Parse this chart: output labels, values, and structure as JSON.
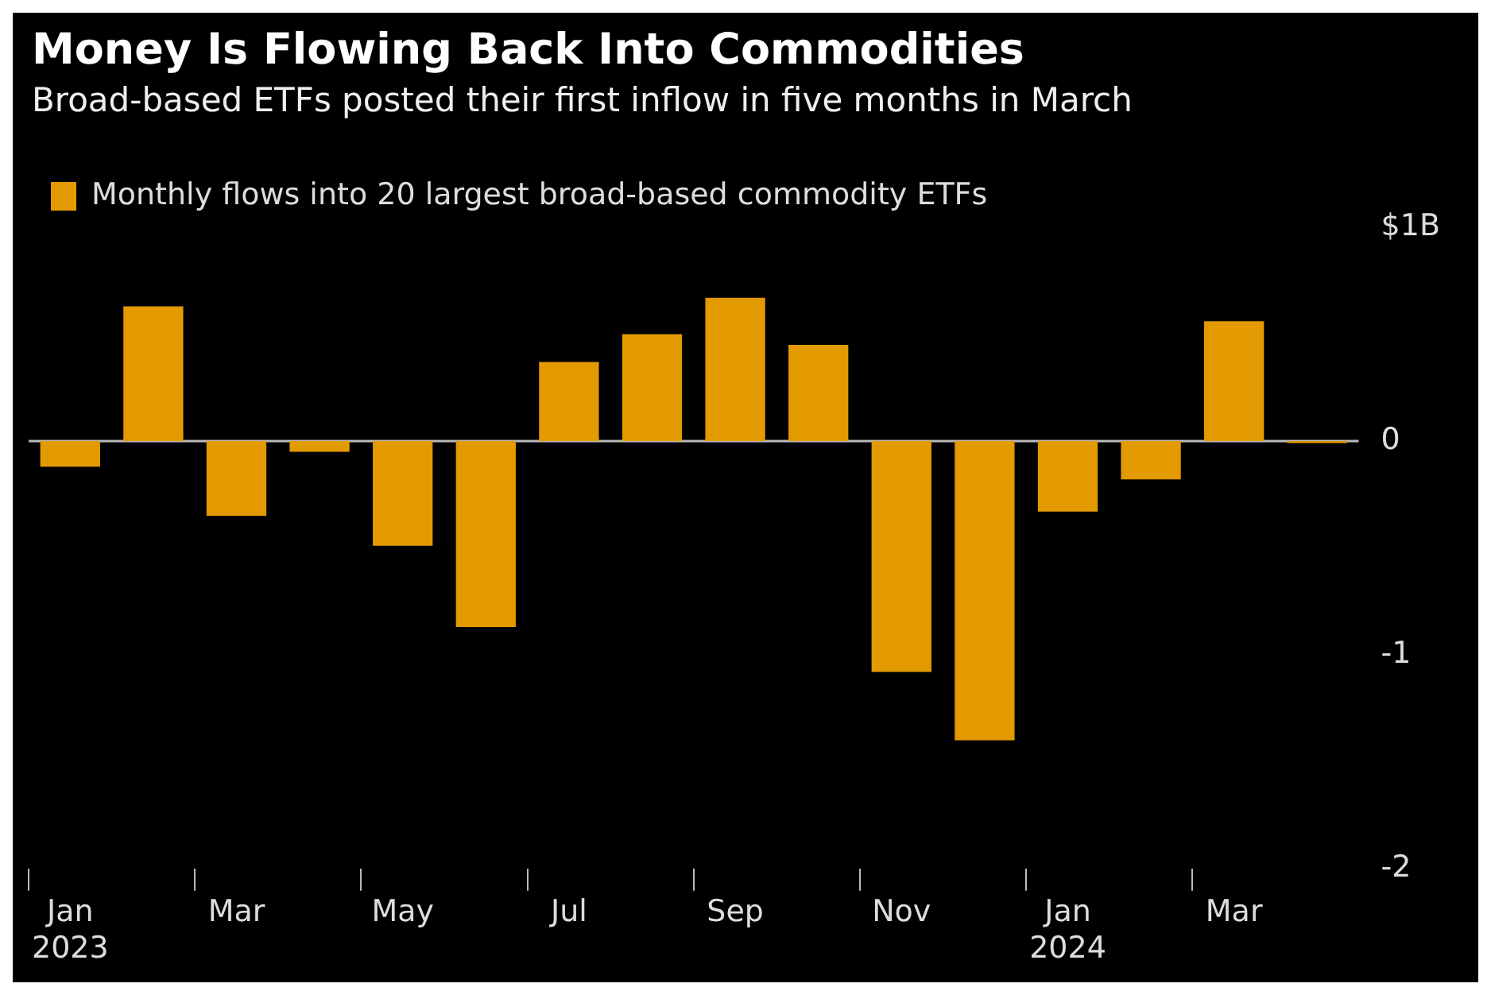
{
  "chart_data": {
    "type": "bar",
    "title": "Money Is Flowing Back Into Commodities",
    "subtitle": "Broad-based ETFs posted their first inflow in five months in March",
    "categories": [
      "Jan 2023",
      null,
      "Mar",
      null,
      "May",
      null,
      "Jul",
      null,
      "Sep",
      null,
      "Nov",
      null,
      "Jan 2024",
      null,
      "Mar",
      null
    ],
    "series": [
      {
        "name": "Monthly flows into 20 largest broad-based commodity ETFs",
        "color": "#e39a00",
        "values": [
          -0.12,
          0.63,
          -0.35,
          -0.05,
          -0.49,
          -0.87,
          0.37,
          0.5,
          0.67,
          0.45,
          -1.08,
          -1.4,
          -0.33,
          -0.18,
          0.56,
          -0.01
        ]
      }
    ],
    "ylim": [
      -2,
      1
    ],
    "yticks": [
      {
        "value": 1,
        "label": "$1B"
      },
      0,
      -1,
      -2
    ],
    "ref_lines": [
      {
        "axis": "y",
        "value": 0,
        "color": "#bbbbbb"
      }
    ],
    "grid": false,
    "legend": "top left"
  }
}
